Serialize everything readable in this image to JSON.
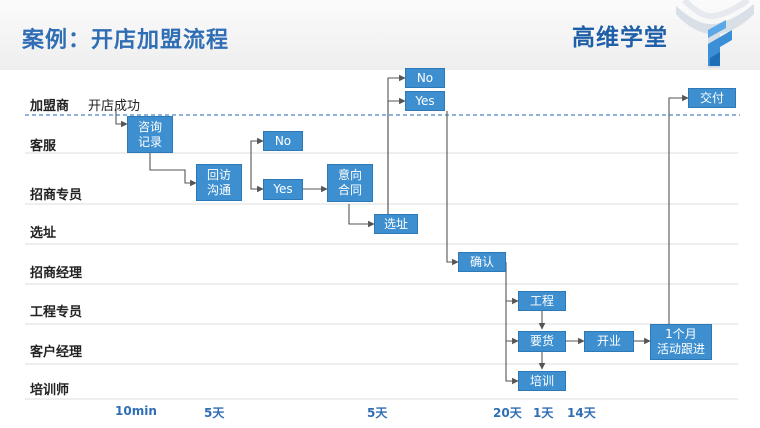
{
  "header": {
    "title": "案例：开店加盟流程",
    "brand": "高维学堂"
  },
  "lanes": [
    {
      "id": "franchisee",
      "label": "加盟商"
    },
    {
      "id": "service",
      "label": "客服"
    },
    {
      "id": "recruiter",
      "label": "招商专员"
    },
    {
      "id": "site",
      "label": "选址"
    },
    {
      "id": "manager",
      "label": "招商经理"
    },
    {
      "id": "engineer",
      "label": "工程专员"
    },
    {
      "id": "account",
      "label": "客户经理"
    },
    {
      "id": "trainer",
      "label": "培训师"
    }
  ],
  "start_text": "开店成功",
  "steps": {
    "consult": "咨询\n记录",
    "callback": "回访\n沟通",
    "no1": "No",
    "yes1": "Yes",
    "intent": "意向\n合同",
    "site_sel": "选址",
    "no2": "No",
    "yes2": "Yes",
    "confirm": "确认",
    "engineering": "工程",
    "supply": "要货",
    "training": "培训",
    "opening": "开业",
    "campaign": "1个月\n活动跟进",
    "delivery": "交付"
  },
  "timeline": [
    "10min",
    "5天",
    "5天",
    "20天",
    "1天",
    "14天"
  ],
  "colors": {
    "title": "#2f6eb5",
    "box": "#3d8fd0",
    "line": "#555555",
    "dashed": "#4a86c5"
  }
}
